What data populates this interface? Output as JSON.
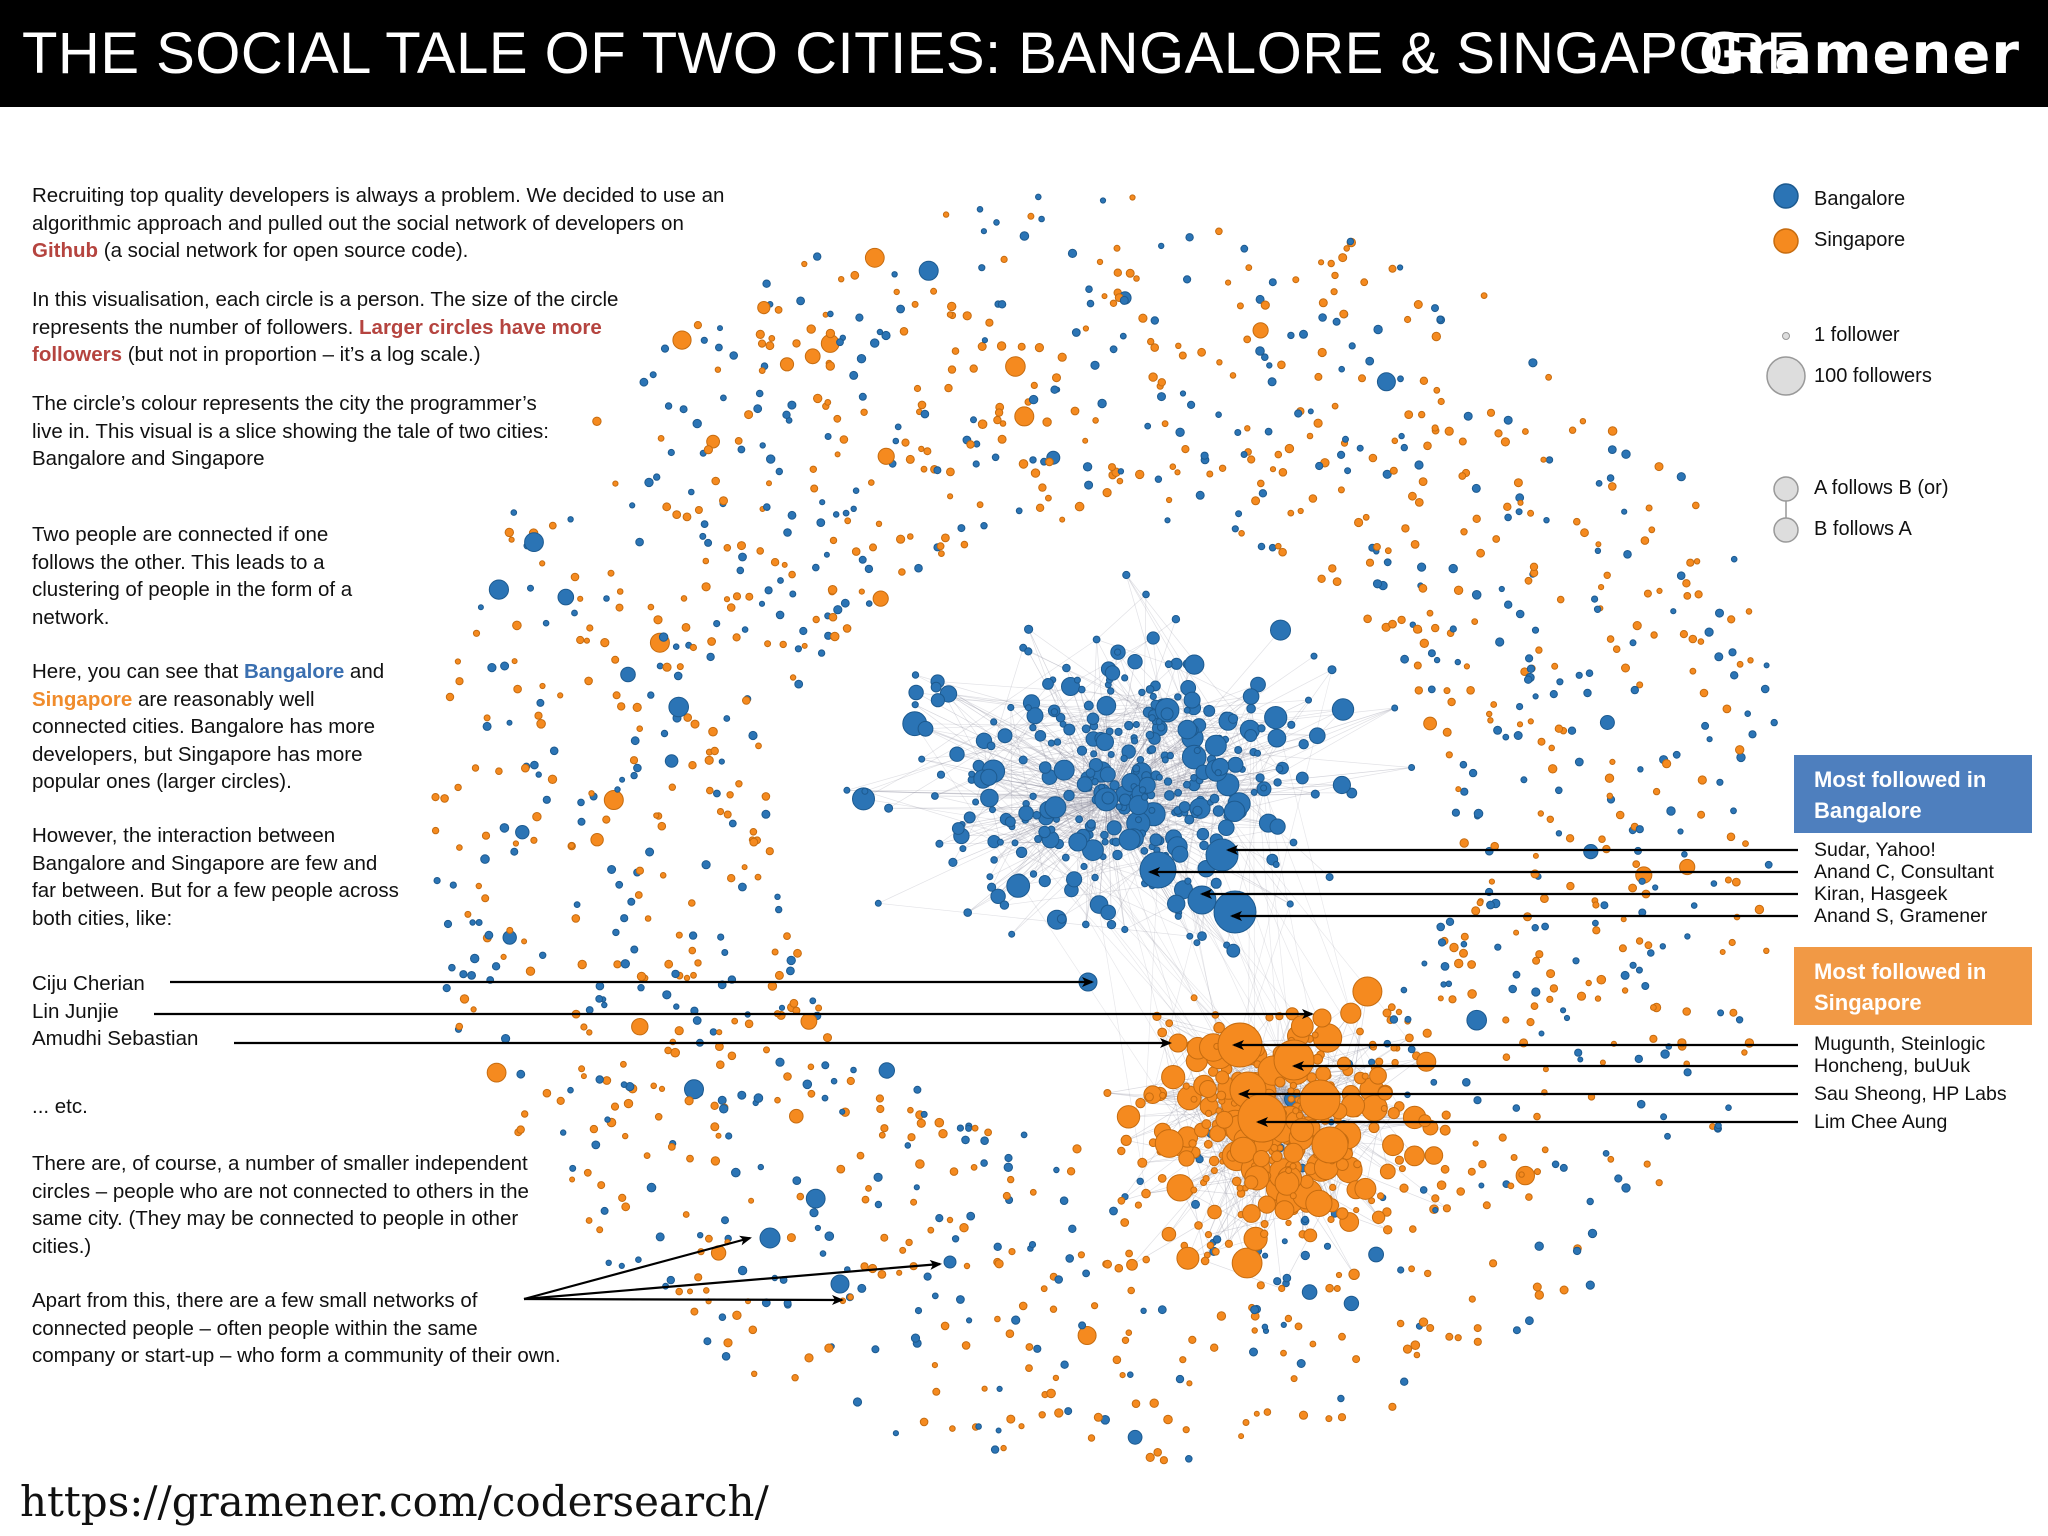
{
  "header": {
    "title": "THE SOCIAL TALE OF TWO CITIES: BANGALORE & SINGAPORE",
    "brand": "Gramener"
  },
  "intro": {
    "p1_a": "Recruiting top quality developers is always a problem. We decided to use an algorithmic approach and pulled out the social network of developers on ",
    "p1_link": "Github",
    "p1_b": " (a social network for open source code).",
    "p2_a": "In this visualisation, each circle is a person. The size of the circle represents the number of followers. ",
    "p2_em": "Larger circles have more followers",
    "p2_b": " (but not in proportion – it’s a log scale.)",
    "p3": "The circle’s colour represents the city the programmer’s live in. This visual is a slice showing the tale of two cities: Bangalore and Singapore",
    "p4": "Two people are connected if one follows the other. This leads to a clustering of people in the form of a network.",
    "p5_a": "Here, you can see that ",
    "p5_b1": "Bangalore",
    "p5_b": " and ",
    "p5_s1": "Singapore",
    "p5_c": " are reasonably well connected cities. Bangalore has more developers, but Singapore has more popular ones (larger circles).",
    "p6": "However, the interaction between Bangalore and Singapore are few and far between. But for a few people across both cities, like:",
    "names": [
      "Ciju Cherian",
      "Lin Junjie",
      "Amudhi Sebastian"
    ],
    "etc": "... etc.",
    "p7": "There are, of course, a number of smaller independent circles – people who are not connected to others in the same city. (They may be connected to people in other cities.)",
    "p8": "Apart from this, there are a few small networks of connected people – often people within the same company or start-up – who form a community of their own."
  },
  "legend": {
    "bangalore": "Bangalore",
    "singapore": "Singapore",
    "size_small": "1 follower",
    "size_large": "100 followers",
    "edge_1": "A follows B (or)",
    "edge_2": "B follows A"
  },
  "most_followed": {
    "bangalore_title": "Most followed in Bangalore",
    "bangalore_people": [
      "Sudar, Yahoo!",
      "Anand C, Consultant",
      "Kiran, Hasgeek",
      "Anand S, Gramener"
    ],
    "singapore_title": "Most followed in Singapore",
    "singapore_people": [
      "Mugunth, Steinlogic",
      "Honcheng, buUuk",
      "Sau Sheong, HP Labs",
      "Lim Chee Aung"
    ]
  },
  "colors": {
    "bangalore": "#2b74b5",
    "singapore": "#f58a1f",
    "edge": "#8a8a9a"
  },
  "footer": {
    "url": "https://gramener.com/codersearch/"
  }
}
